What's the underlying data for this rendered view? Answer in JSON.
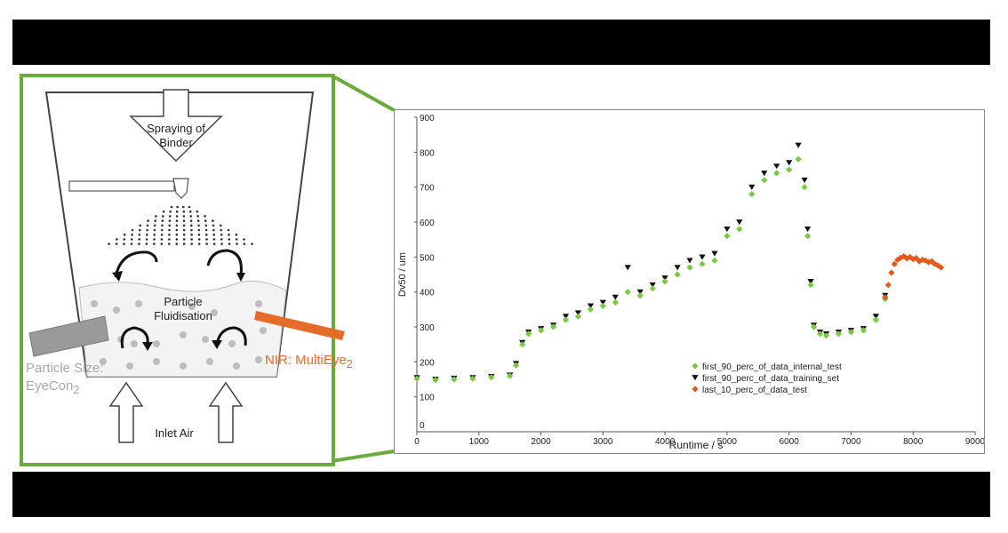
{
  "diagram": {
    "spray_label_line1": "Spraying of",
    "spray_label_line2": "Binder",
    "particle_label_line1": "Particle",
    "particle_label_line2": "Fluidisation",
    "inlet_label": "Inlet Air",
    "nir_label": "NIR: MultiEye",
    "nir_sub": "2",
    "particle_size_line1": "Particle Size:",
    "particle_size_line2": "EyeCon",
    "particle_size_sub": "2",
    "frame_color": "#6aab3c",
    "nir_color": "#e46c28",
    "probe_color": "#9a9a9a"
  },
  "chart_data": {
    "type": "scatter",
    "xlabel": "Runtime / s",
    "ylabel": "Dv50 / um",
    "xlim": [
      0,
      9000
    ],
    "ylim": [
      0,
      900
    ],
    "xticks": [
      0,
      1000,
      2000,
      3000,
      4000,
      5000,
      6000,
      7000,
      8000,
      9000
    ],
    "yticks": [
      100,
      200,
      300,
      400,
      500,
      600,
      700,
      800,
      900
    ],
    "grid": false,
    "legend_position": "bottom-right",
    "series": [
      {
        "name": "first_90_perc_of_data_internal_test",
        "marker": "diamond",
        "color": "#7ac943",
        "x": [
          0,
          300,
          600,
          900,
          1200,
          1500,
          1600,
          1700,
          1800,
          2000,
          2200,
          2400,
          2600,
          2800,
          3000,
          3200,
          3400,
          3600,
          3800,
          4000,
          4200,
          4400,
          4600,
          4800,
          5000,
          5200,
          5400,
          5600,
          5800,
          6000,
          6150,
          6250,
          6300,
          6350,
          6400,
          6500,
          6600,
          6800,
          7000,
          7200,
          7400,
          7550
        ],
        "y": [
          152,
          148,
          150,
          152,
          156,
          160,
          190,
          250,
          280,
          290,
          300,
          320,
          330,
          350,
          360,
          370,
          400,
          390,
          410,
          430,
          450,
          470,
          480,
          490,
          560,
          580,
          680,
          720,
          740,
          750,
          780,
          700,
          560,
          420,
          300,
          280,
          275,
          280,
          285,
          290,
          320,
          380
        ]
      },
      {
        "name": "first_90_perc_of_data_training_set",
        "marker": "triangle-down",
        "color": "#111111",
        "x": [
          0,
          300,
          600,
          900,
          1200,
          1500,
          1600,
          1700,
          1800,
          2000,
          2200,
          2400,
          2600,
          2800,
          3000,
          3200,
          3400,
          3600,
          3800,
          4000,
          4200,
          4400,
          4600,
          4800,
          5000,
          5200,
          5400,
          5600,
          5800,
          6000,
          6150,
          6250,
          6300,
          6350,
          6400,
          6500,
          6600,
          6800,
          7000,
          7200,
          7400,
          7550
        ],
        "y": [
          155,
          150,
          153,
          155,
          158,
          162,
          195,
          255,
          285,
          295,
          305,
          330,
          340,
          360,
          370,
          385,
          470,
          400,
          420,
          440,
          470,
          490,
          500,
          510,
          580,
          600,
          700,
          740,
          760,
          770,
          820,
          720,
          580,
          430,
          305,
          285,
          280,
          285,
          290,
          295,
          330,
          390
        ]
      },
      {
        "name": "last_10_perc_of_data_test",
        "marker": "diamond",
        "color": "#e35a1a",
        "x": [
          7550,
          7600,
          7650,
          7700,
          7750,
          7800,
          7850,
          7900,
          7950,
          8000,
          8050,
          8100,
          8150,
          8200,
          8250,
          8300,
          8350,
          8400,
          8450
        ],
        "y": [
          385,
          420,
          455,
          480,
          492,
          498,
          502,
          496,
          500,
          494,
          497,
          488,
          492,
          490,
          485,
          488,
          480,
          476,
          470
        ]
      }
    ]
  }
}
